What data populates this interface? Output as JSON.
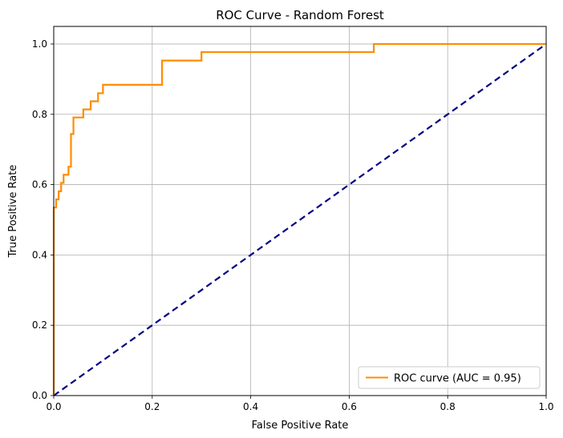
{
  "chart_data": {
    "type": "line",
    "title": "ROC Curve - Random Forest",
    "xlabel": "False Positive Rate",
    "ylabel": "True Positive Rate",
    "xlim": [
      0.0,
      1.0
    ],
    "ylim": [
      0.0,
      1.05
    ],
    "x_ticks": [
      "0.0",
      "0.2",
      "0.4",
      "0.6",
      "0.8",
      "1.0"
    ],
    "y_ticks": [
      "0.0",
      "0.2",
      "0.4",
      "0.6",
      "0.8",
      "1.0"
    ],
    "x_tick_values": [
      0.0,
      0.2,
      0.4,
      0.6,
      0.8,
      1.0
    ],
    "y_tick_values": [
      0.0,
      0.2,
      0.4,
      0.6,
      0.8,
      1.0
    ],
    "grid": true,
    "legend_position": "lower-right",
    "series": [
      {
        "name": "ROC curve (AUC = 0.95)",
        "color": "#ff8c00",
        "style": "solid",
        "x": [
          0.0,
          0.0,
          0.0,
          0.0,
          0.005,
          0.005,
          0.01,
          0.01,
          0.015,
          0.015,
          0.02,
          0.02,
          0.03,
          0.03,
          0.035,
          0.035,
          0.04,
          0.04,
          0.06,
          0.06,
          0.075,
          0.075,
          0.09,
          0.09,
          0.1,
          0.1,
          0.22,
          0.22,
          0.3,
          0.3,
          0.65,
          0.65,
          1.0
        ],
        "y": [
          0.0,
          0.465,
          0.488,
          0.535,
          0.535,
          0.558,
          0.558,
          0.581,
          0.581,
          0.605,
          0.605,
          0.628,
          0.628,
          0.651,
          0.651,
          0.744,
          0.744,
          0.791,
          0.791,
          0.814,
          0.814,
          0.837,
          0.837,
          0.86,
          0.86,
          0.884,
          0.884,
          0.953,
          0.953,
          0.977,
          0.977,
          1.0,
          1.0
        ]
      },
      {
        "name": "",
        "color": "#000080",
        "style": "dashed",
        "x": [
          0.0,
          1.0
        ],
        "y": [
          0.0,
          1.0
        ]
      }
    ]
  }
}
